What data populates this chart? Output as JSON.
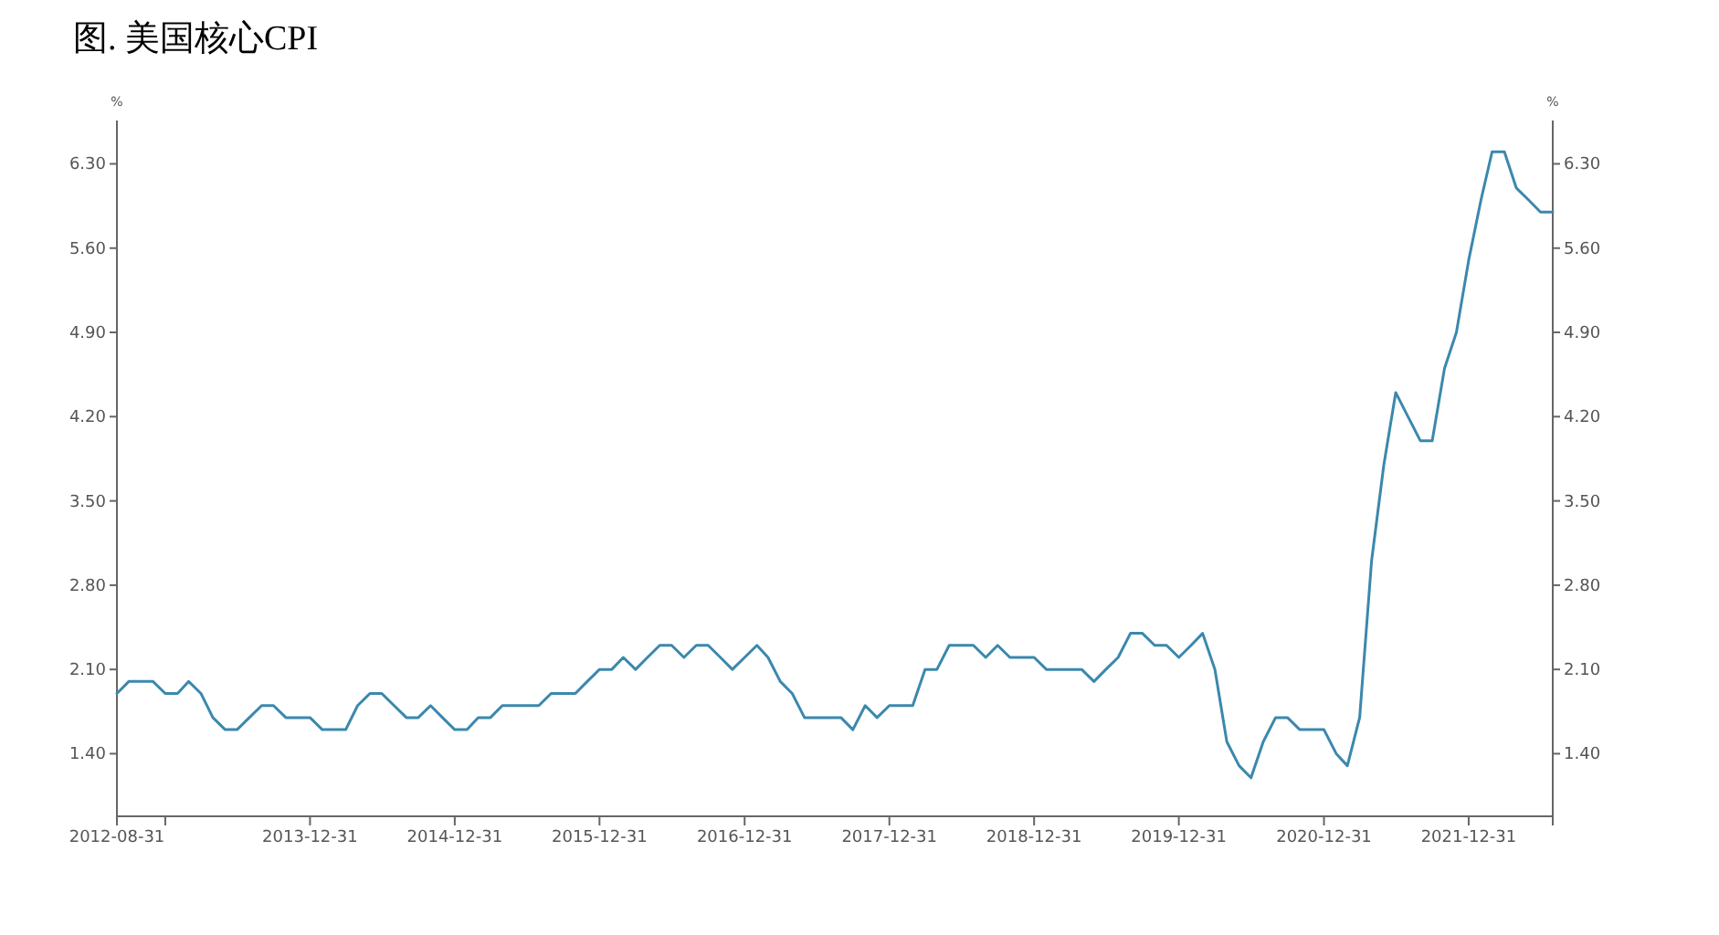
{
  "chart_data": {
    "type": "line",
    "title": "图. 美国核心CPI",
    "ylabel": "%",
    "y2label": "%",
    "grid": false,
    "color": "#3b88ad",
    "x": [
      "2012-08-31",
      "2012-09-30",
      "2012-10-31",
      "2012-11-30",
      "2012-12-31",
      "2013-01-31",
      "2013-02-28",
      "2013-03-31",
      "2013-04-30",
      "2013-05-31",
      "2013-06-30",
      "2013-07-31",
      "2013-08-31",
      "2013-09-30",
      "2013-10-31",
      "2013-11-30",
      "2013-12-31",
      "2014-01-31",
      "2014-02-28",
      "2014-03-31",
      "2014-04-30",
      "2014-05-31",
      "2014-06-30",
      "2014-07-31",
      "2014-08-31",
      "2014-09-30",
      "2014-10-31",
      "2014-11-30",
      "2014-12-31",
      "2015-01-31",
      "2015-02-28",
      "2015-03-31",
      "2015-04-30",
      "2015-05-31",
      "2015-06-30",
      "2015-07-31",
      "2015-08-31",
      "2015-09-30",
      "2015-10-31",
      "2015-11-30",
      "2015-12-31",
      "2016-01-31",
      "2016-02-29",
      "2016-03-31",
      "2016-04-30",
      "2016-05-31",
      "2016-06-30",
      "2016-07-31",
      "2016-08-31",
      "2016-09-30",
      "2016-10-31",
      "2016-11-30",
      "2016-12-31",
      "2017-01-31",
      "2017-02-28",
      "2017-03-31",
      "2017-04-30",
      "2017-05-31",
      "2017-06-30",
      "2017-07-31",
      "2017-08-31",
      "2017-09-30",
      "2017-10-31",
      "2017-11-30",
      "2017-12-31",
      "2018-01-31",
      "2018-02-28",
      "2018-03-31",
      "2018-04-30",
      "2018-05-31",
      "2018-06-30",
      "2018-07-31",
      "2018-08-31",
      "2018-09-30",
      "2018-10-31",
      "2018-11-30",
      "2018-12-31",
      "2019-01-31",
      "2019-02-28",
      "2019-03-31",
      "2019-04-30",
      "2019-05-31",
      "2019-06-30",
      "2019-07-31",
      "2019-08-31",
      "2019-09-30",
      "2019-10-31",
      "2019-11-30",
      "2019-12-31",
      "2020-01-31",
      "2020-02-29",
      "2020-03-31",
      "2020-04-30",
      "2020-05-31",
      "2020-06-30",
      "2020-07-31",
      "2020-08-31",
      "2020-09-30",
      "2020-10-31",
      "2020-11-30",
      "2020-12-31",
      "2021-01-31",
      "2021-02-28",
      "2021-03-31",
      "2021-04-30",
      "2021-05-31",
      "2021-06-30",
      "2021-07-31",
      "2021-08-31",
      "2021-09-30",
      "2021-10-31",
      "2021-11-30",
      "2021-12-31",
      "2022-01-31",
      "2022-02-28",
      "2022-03-31",
      "2022-04-30",
      "2022-05-31",
      "2022-06-30",
      "2022-07-31"
    ],
    "values": [
      1.9,
      2.0,
      2.0,
      2.0,
      1.9,
      1.9,
      2.0,
      1.9,
      1.7,
      1.6,
      1.6,
      1.7,
      1.8,
      1.8,
      1.7,
      1.7,
      1.7,
      1.6,
      1.6,
      1.6,
      1.8,
      1.9,
      1.9,
      1.8,
      1.7,
      1.7,
      1.8,
      1.7,
      1.6,
      1.6,
      1.7,
      1.7,
      1.8,
      1.8,
      1.8,
      1.8,
      1.9,
      1.9,
      1.9,
      2.0,
      2.1,
      2.1,
      2.2,
      2.1,
      2.2,
      2.3,
      2.3,
      2.2,
      2.3,
      2.3,
      2.2,
      2.1,
      2.2,
      2.3,
      2.2,
      2.0,
      1.9,
      1.7,
      1.7,
      1.7,
      1.7,
      1.6,
      1.8,
      1.7,
      1.8,
      1.8,
      1.8,
      2.1,
      2.1,
      2.3,
      2.3,
      2.3,
      2.2,
      2.3,
      2.2,
      2.2,
      2.2,
      2.1,
      2.1,
      2.1,
      2.1,
      2.0,
      2.1,
      2.2,
      2.4,
      2.4,
      2.3,
      2.3,
      2.2,
      2.3,
      2.4,
      2.1,
      1.5,
      1.3,
      1.2,
      1.5,
      1.7,
      1.7,
      1.6,
      1.6,
      1.6,
      1.4,
      1.3,
      1.7,
      3.0,
      3.8,
      4.4,
      4.2,
      4.0,
      4.0,
      4.6,
      4.9,
      5.5,
      6.0,
      6.4,
      6.4,
      6.1,
      6.0,
      5.9,
      5.9
    ],
    "xlim": [
      "2012-08-31",
      "2022-07-31"
    ],
    "xticks": [
      {
        "value": "2012-08-31",
        "label": "2012-08-31"
      },
      {
        "value": "2012-12-31",
        "label": null
      },
      {
        "value": "2013-12-31",
        "label": "2013-12-31"
      },
      {
        "value": "2014-12-31",
        "label": "2014-12-31"
      },
      {
        "value": "2015-12-31",
        "label": "2015-12-31"
      },
      {
        "value": "2016-12-31",
        "label": "2016-12-31"
      },
      {
        "value": "2017-12-31",
        "label": "2017-12-31"
      },
      {
        "value": "2018-12-31",
        "label": "2018-12-31"
      },
      {
        "value": "2019-12-31",
        "label": "2019-12-31"
      },
      {
        "value": "2020-12-31",
        "label": "2020-12-31"
      },
      {
        "value": "2021-12-31",
        "label": "2021-12-31"
      },
      {
        "value": "2022-07-31",
        "label": null
      }
    ],
    "ylim": [
      0.88,
      6.66
    ],
    "yticks": [
      {
        "value": 1.4,
        "label": "1.40"
      },
      {
        "value": 2.1,
        "label": "2.10"
      },
      {
        "value": 2.8,
        "label": "2.80"
      },
      {
        "value": 3.5,
        "label": "3.50"
      },
      {
        "value": 4.2,
        "label": "4.20"
      },
      {
        "value": 4.9,
        "label": "4.90"
      },
      {
        "value": 5.6,
        "label": "5.60"
      },
      {
        "value": 6.3,
        "label": "6.30"
      }
    ],
    "y2lim": [
      0.88,
      6.66
    ],
    "y2ticks": [
      {
        "value": 1.4,
        "label": "1.40"
      },
      {
        "value": 2.1,
        "label": "2.10"
      },
      {
        "value": 2.8,
        "label": "2.80"
      },
      {
        "value": 3.5,
        "label": "3.50"
      },
      {
        "value": 4.2,
        "label": "4.20"
      },
      {
        "value": 4.9,
        "label": "4.90"
      },
      {
        "value": 5.6,
        "label": "5.60"
      },
      {
        "value": 6.3,
        "label": "6.30"
      }
    ]
  }
}
